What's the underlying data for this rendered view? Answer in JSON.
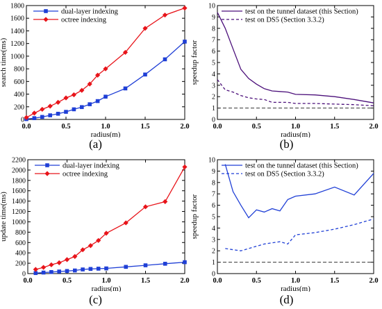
{
  "chart_data": [
    {
      "type": "line",
      "caption": "(a)",
      "xlabel": "radius(m)",
      "ylabel": "search time(ms)",
      "xlim": [
        0,
        2.0
      ],
      "ylim": [
        0,
        1800
      ],
      "xticks": [
        0.0,
        0.5,
        1.0,
        1.5,
        2.0
      ],
      "yticks": [
        0,
        200,
        400,
        600,
        800,
        1000,
        1200,
        1400,
        1600,
        1800
      ],
      "grid": false,
      "legend": "top-left",
      "series": [
        {
          "name": "dual-layer indexing",
          "color": "#1f3fd6",
          "marker": "square",
          "dash": "solid",
          "x": [
            0.0,
            0.1,
            0.2,
            0.3,
            0.4,
            0.5,
            0.6,
            0.7,
            0.8,
            0.9,
            1.0,
            1.25,
            1.5,
            1.75,
            2.0
          ],
          "y": [
            5,
            20,
            40,
            65,
            90,
            120,
            160,
            195,
            240,
            290,
            360,
            490,
            710,
            950,
            1230
          ]
        },
        {
          "name": "octree indexing",
          "color": "#e8141a",
          "marker": "diamond",
          "dash": "solid",
          "x": [
            0.0,
            0.1,
            0.2,
            0.3,
            0.4,
            0.5,
            0.6,
            0.7,
            0.8,
            0.9,
            1.0,
            1.25,
            1.5,
            1.75,
            2.0
          ],
          "y": [
            30,
            100,
            160,
            210,
            270,
            340,
            390,
            460,
            560,
            700,
            800,
            1060,
            1440,
            1650,
            1760
          ]
        }
      ]
    },
    {
      "type": "line",
      "caption": "(b)",
      "xlabel": "radius(m)",
      "ylabel": "speedup factor",
      "xlim": [
        0,
        2.0
      ],
      "ylim": [
        0,
        10
      ],
      "xticks": [
        0.0,
        0.5,
        1.0,
        1.5,
        2.0
      ],
      "yticks": [
        0,
        1,
        2,
        3,
        4,
        5,
        6,
        7,
        8,
        9,
        10
      ],
      "grid": false,
      "legend": "top-left",
      "baseline": 1,
      "series": [
        {
          "name": "test on the tunnel dataset (this Section)",
          "color": "#4b0f7a",
          "marker": "none",
          "dash": "solid",
          "x": [
            0.0,
            0.1,
            0.2,
            0.3,
            0.4,
            0.5,
            0.6,
            0.7,
            0.8,
            0.9,
            1.0,
            1.25,
            1.5,
            1.75,
            2.0
          ],
          "y": [
            9.4,
            8.0,
            6.2,
            4.4,
            3.6,
            3.1,
            2.7,
            2.5,
            2.45,
            2.4,
            2.2,
            2.15,
            2.0,
            1.75,
            1.45
          ]
        },
        {
          "name": "test on DS5 (Section 3.3.2)",
          "color": "#4b0f7a",
          "marker": "none",
          "dash": "dashed",
          "x": [
            0.0,
            0.1,
            0.2,
            0.3,
            0.4,
            0.5,
            0.6,
            0.7,
            0.8,
            0.9,
            1.0,
            1.25,
            1.5,
            1.75,
            2.0
          ],
          "y": [
            3.5,
            2.6,
            2.4,
            2.1,
            1.9,
            1.8,
            1.75,
            1.5,
            1.5,
            1.5,
            1.4,
            1.4,
            1.35,
            1.3,
            1.2
          ]
        }
      ]
    },
    {
      "type": "line",
      "caption": "(c)",
      "xlabel": "radius(m)",
      "ylabel": "update time(ms)",
      "xlim": [
        0,
        2.0
      ],
      "ylim": [
        0,
        2200
      ],
      "xticks": [
        0.0,
        0.5,
        1.0,
        1.5,
        2.0
      ],
      "yticks": [
        0,
        200,
        400,
        600,
        800,
        1000,
        1200,
        1400,
        1600,
        1800,
        2000,
        2200
      ],
      "grid": false,
      "legend": "top-left",
      "series": [
        {
          "name": "dual-layer indexing",
          "color": "#1f3fd6",
          "marker": "square",
          "dash": "solid",
          "x": [
            0.1,
            0.2,
            0.3,
            0.4,
            0.5,
            0.6,
            0.7,
            0.8,
            0.9,
            1.0,
            1.25,
            1.5,
            1.75,
            2.0
          ],
          "y": [
            10,
            20,
            30,
            40,
            50,
            60,
            80,
            90,
            95,
            100,
            130,
            160,
            190,
            220
          ]
        },
        {
          "name": "octree indexing",
          "color": "#e8141a",
          "marker": "diamond",
          "dash": "solid",
          "x": [
            0.1,
            0.2,
            0.3,
            0.4,
            0.5,
            0.6,
            0.7,
            0.8,
            0.9,
            1.0,
            1.25,
            1.5,
            1.75,
            2.0
          ],
          "y": [
            80,
            120,
            170,
            210,
            270,
            330,
            460,
            540,
            640,
            780,
            980,
            1290,
            1390,
            2060
          ]
        }
      ]
    },
    {
      "type": "line",
      "caption": "(d)",
      "xlabel": "radius(m)",
      "ylabel": "speedup factor",
      "xlim": [
        0,
        2.0
      ],
      "ylim": [
        0,
        10
      ],
      "xticks": [
        0.0,
        0.5,
        1.0,
        1.5,
        2.0
      ],
      "yticks": [
        0,
        1,
        2,
        3,
        4,
        5,
        6,
        7,
        8,
        9,
        10
      ],
      "grid": false,
      "legend": "top-left",
      "baseline": 1,
      "series": [
        {
          "name": "test on the tunnel dataset (this Section)",
          "color": "#1f3fd6",
          "marker": "none",
          "dash": "solid",
          "x": [
            0.1,
            0.2,
            0.3,
            0.4,
            0.5,
            0.6,
            0.7,
            0.8,
            0.9,
            1.0,
            1.25,
            1.5,
            1.75,
            2.0
          ],
          "y": [
            9.6,
            7.2,
            6.0,
            4.9,
            5.6,
            5.4,
            5.7,
            5.5,
            6.5,
            6.8,
            7.0,
            7.6,
            6.9,
            8.8
          ]
        },
        {
          "name": "test on DS5 (Section 3.3.2)",
          "color": "#1f3fd6",
          "marker": "none",
          "dash": "dashed",
          "x": [
            0.1,
            0.2,
            0.3,
            0.4,
            0.5,
            0.6,
            0.7,
            0.8,
            0.9,
            1.0,
            1.25,
            1.5,
            1.75,
            2.0
          ],
          "y": [
            2.2,
            2.1,
            2.0,
            2.2,
            2.4,
            2.6,
            2.7,
            2.8,
            2.6,
            3.4,
            3.6,
            3.9,
            4.3,
            4.8
          ]
        }
      ]
    }
  ]
}
